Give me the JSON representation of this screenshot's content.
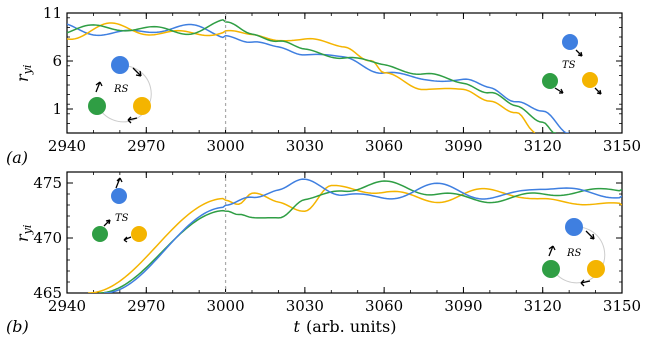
{
  "chart_data": [
    {
      "panel": "(a)",
      "type": "line",
      "xlim": [
        2940,
        3150
      ],
      "ylim": [
        -1.5,
        11
      ],
      "xticks": [
        2940,
        2970,
        3000,
        3030,
        3060,
        3090,
        3120,
        3150
      ],
      "yticks": [
        1,
        6,
        11
      ],
      "ylabel": "r_yi",
      "vline_x": 3000,
      "series": [
        {
          "color": "#3f7fe0",
          "points": [
            [
              2940,
              9.6
            ],
            [
              2960,
              8.7
            ],
            [
              2980,
              9.6
            ],
            [
              3000,
              8.8
            ],
            [
              3010,
              7.9
            ],
            [
              3020,
              7.4
            ],
            [
              3030,
              6.8
            ],
            [
              3045,
              6.3
            ],
            [
              3060,
              4.8
            ],
            [
              3075,
              4.1
            ],
            [
              3090,
              4.0
            ],
            [
              3100,
              3.2
            ],
            [
              3110,
              1.9
            ],
            [
              3120,
              0.6
            ],
            [
              3130,
              -1.5
            ]
          ]
        },
        {
          "color": "#f4b400",
          "points": [
            [
              2940,
              8.7
            ],
            [
              2960,
              9.6
            ],
            [
              2980,
              8.7
            ],
            [
              3000,
              9.2
            ],
            [
              3010,
              8.6
            ],
            [
              3020,
              8.3
            ],
            [
              3030,
              8.2
            ],
            [
              3045,
              7.6
            ],
            [
              3055,
              6.0
            ],
            [
              3060,
              4.6
            ],
            [
              3075,
              3.2
            ],
            [
              3090,
              2.9
            ],
            [
              3100,
              2.0
            ],
            [
              3110,
              0.5
            ],
            [
              3117,
              -1.5
            ]
          ]
        },
        {
          "color": "#2f9e44",
          "points": [
            [
              2940,
              9.1
            ],
            [
              2960,
              9.6
            ],
            [
              2980,
              9.0
            ],
            [
              3000,
              9.9
            ],
            [
              3010,
              8.9
            ],
            [
              3020,
              8.1
            ],
            [
              3030,
              7.1
            ],
            [
              3045,
              6.4
            ],
            [
              3060,
              5.6
            ],
            [
              3075,
              4.6
            ],
            [
              3090,
              3.8
            ],
            [
              3100,
              2.7
            ],
            [
              3110,
              1.2
            ],
            [
              3120,
              -0.2
            ],
            [
              3125,
              -1.5
            ]
          ]
        }
      ],
      "insets": {
        "left_label": "RS",
        "right_label": "TS"
      }
    },
    {
      "panel": "(b)",
      "type": "line",
      "xlim": [
        2940,
        3150
      ],
      "ylim": [
        465,
        476
      ],
      "xticks": [
        2940,
        2970,
        3000,
        3030,
        3060,
        3090,
        3120,
        3150
      ],
      "yticks": [
        465,
        470,
        475
      ],
      "ylabel": "r_yi",
      "xlabel": "t (arb. units)",
      "vline_x": 3000,
      "series": [
        {
          "color": "#f4b400",
          "points": [
            [
              2948,
              465
            ],
            [
              3000,
              473.6
            ],
            [
              3005,
              473.2
            ],
            [
              3010,
              474.0
            ],
            [
              3020,
              473.2
            ],
            [
              3030,
              472.6
            ],
            [
              3040,
              474.6
            ],
            [
              3060,
              474.2
            ],
            [
              3080,
              473.4
            ],
            [
              3100,
              474.4
            ],
            [
              3120,
              473.4
            ],
            [
              3150,
              473.0
            ]
          ]
        },
        {
          "color": "#2f9e44",
          "points": [
            [
              2952,
              465
            ],
            [
              3000,
              472.5
            ],
            [
              3005,
              472.0
            ],
            [
              3010,
              471.7
            ],
            [
              3020,
              472.0
            ],
            [
              3030,
              473.4
            ],
            [
              3045,
              474.4
            ],
            [
              3060,
              475.0
            ],
            [
              3080,
              474.0
            ],
            [
              3100,
              473.4
            ],
            [
              3120,
              474.0
            ],
            [
              3150,
              474.4
            ]
          ]
        },
        {
          "color": "#3f7fe0",
          "points": [
            [
              2954,
              465
            ],
            [
              3000,
              472.8
            ],
            [
              3010,
              473.8
            ],
            [
              3020,
              474.4
            ],
            [
              3030,
              475.2
            ],
            [
              3045,
              474.0
            ],
            [
              3060,
              473.6
            ],
            [
              3080,
              474.8
            ],
            [
              3100,
              473.6
            ],
            [
              3120,
              474.6
            ],
            [
              3150,
              473.8
            ]
          ]
        }
      ],
      "insets": {
        "left_label": "TS",
        "right_label": "RS"
      }
    }
  ],
  "labels": {
    "panel_a": "(a)",
    "panel_b": "(b)",
    "ylabel_main": "r",
    "ylabel_sub": "yi",
    "xlabel_var": "t",
    "xlabel_units": "(arb. units)"
  }
}
